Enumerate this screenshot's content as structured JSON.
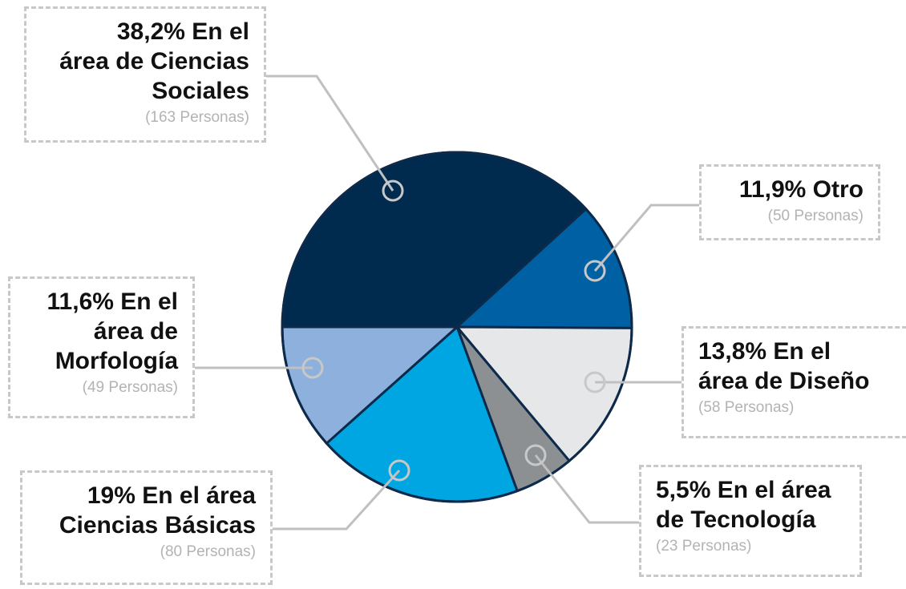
{
  "chart_data": {
    "type": "pie",
    "categories": [
      "En el\nárea de Ciencias\nSociales",
      "Otro",
      "En el\nárea de Diseño",
      "En el área\nde Tecnología",
      "En el área\nCiencias Básicas",
      "En el\nárea de\nMorfología"
    ],
    "values": [
      38.2,
      11.9,
      13.8,
      5.5,
      19,
      11.6
    ],
    "value_labels": [
      "38,2%",
      "11,9%",
      "13,8%",
      "5,5%",
      "19%",
      "11,6%"
    ],
    "count_labels": [
      "(163 Personas)",
      "(50 Personas)",
      "(58 Personas)",
      "(23 Personas)",
      "(80 Personas)",
      "(49 Personas)"
    ],
    "colors": [
      "#002a4e",
      "#0060a4",
      "#e6e7e8",
      "#8c9093",
      "#00a6e1",
      "#8eb0dc"
    ]
  }
}
